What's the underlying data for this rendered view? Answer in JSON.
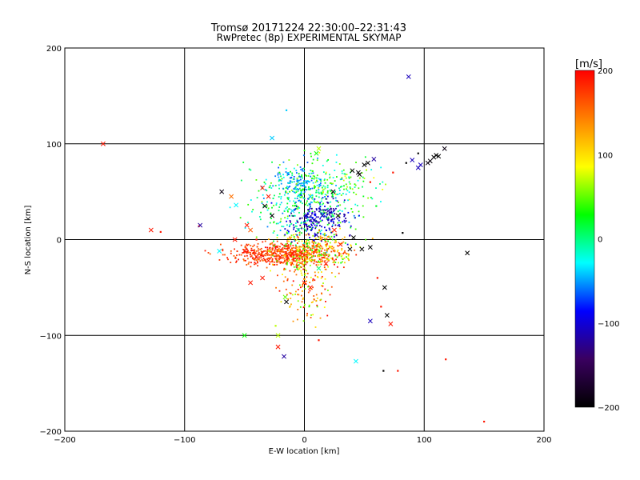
{
  "chart_data": {
    "type": "scatter",
    "title": "Tromsø 20171224 22:30:00–22:31:43",
    "subtitle": "RwPretec (8p) EXPERIMENTAL SKYMAP",
    "xlabel": "E-W location [km]",
    "ylabel": "N-S location [km]",
    "xlim": [
      -200,
      200
    ],
    "ylim": [
      -200,
      200
    ],
    "xticks": [
      "−200",
      "−100",
      "0",
      "100",
      "200"
    ],
    "xtick_values": [
      -200,
      -100,
      0,
      100,
      200
    ],
    "yticks": [
      "−200",
      "−100",
      "0",
      "100",
      "200"
    ],
    "ytick_values": [
      -200,
      -100,
      0,
      100,
      200
    ],
    "grid": true,
    "colorbar": {
      "label": "[m/s]",
      "range": [
        -200,
        200
      ],
      "ticks": [
        "−200",
        "−100",
        "0",
        "100",
        "200"
      ],
      "tick_values": [
        -200,
        -100,
        0,
        100,
        200
      ],
      "colors": [
        "#000000",
        "#3a0060",
        "#0000ff",
        "#00ffff",
        "#00ff00",
        "#ffff00",
        "#ff8000",
        "#ff0000"
      ]
    },
    "points_x": [
      {
        "x": 87,
        "y": 170,
        "v": -110
      },
      {
        "x": -168,
        "y": 100,
        "v": 190
      },
      {
        "x": -27,
        "y": 106,
        "v": -40
      },
      {
        "x": 110,
        "y": 88,
        "v": -200
      },
      {
        "x": 108,
        "y": 86,
        "v": -200
      },
      {
        "x": 112,
        "y": 87,
        "v": -200
      },
      {
        "x": 105,
        "y": 82,
        "v": -195
      },
      {
        "x": 103,
        "y": 80,
        "v": -190
      },
      {
        "x": 117,
        "y": 95,
        "v": -190
      },
      {
        "x": 90,
        "y": 83,
        "v": -110
      },
      {
        "x": 97,
        "y": 78,
        "v": -110
      },
      {
        "x": 95,
        "y": 75,
        "v": -110
      },
      {
        "x": 58,
        "y": 84,
        "v": -120
      },
      {
        "x": 50,
        "y": 78,
        "v": -200
      },
      {
        "x": 53,
        "y": 80,
        "v": -200
      },
      {
        "x": 45,
        "y": 70,
        "v": -200
      },
      {
        "x": 46,
        "y": 68,
        "v": -200
      },
      {
        "x": 40,
        "y": 72,
        "v": -200
      },
      {
        "x": 12,
        "y": 95,
        "v": 70
      },
      {
        "x": 10,
        "y": 90,
        "v": 30
      },
      {
        "x": -69,
        "y": 50,
        "v": -190
      },
      {
        "x": -61,
        "y": 45,
        "v": 150
      },
      {
        "x": -35,
        "y": 54,
        "v": 190
      },
      {
        "x": -30,
        "y": 45,
        "v": 190
      },
      {
        "x": -57,
        "y": 36,
        "v": -30
      },
      {
        "x": -33,
        "y": 35,
        "v": -200
      },
      {
        "x": -27,
        "y": 25,
        "v": -200
      },
      {
        "x": -128,
        "y": 10,
        "v": 190
      },
      {
        "x": -87,
        "y": 15,
        "v": -120
      },
      {
        "x": -48,
        "y": 15,
        "v": 190
      },
      {
        "x": -45,
        "y": 10,
        "v": 160
      },
      {
        "x": -58,
        "y": 0,
        "v": 190
      },
      {
        "x": -71,
        "y": -12,
        "v": -30
      },
      {
        "x": -50,
        "y": -12,
        "v": 190
      },
      {
        "x": -40,
        "y": -18,
        "v": 190
      },
      {
        "x": -30,
        "y": -22,
        "v": 190
      },
      {
        "x": -20,
        "y": -18,
        "v": 190
      },
      {
        "x": -10,
        "y": -15,
        "v": 190
      },
      {
        "x": -45,
        "y": -45,
        "v": 190
      },
      {
        "x": -35,
        "y": -40,
        "v": 190
      },
      {
        "x": 0,
        "y": -45,
        "v": 190
      },
      {
        "x": 5,
        "y": -50,
        "v": 190
      },
      {
        "x": 38,
        "y": -10,
        "v": -200
      },
      {
        "x": 48,
        "y": -10,
        "v": -200
      },
      {
        "x": 55,
        "y": -8,
        "v": -200
      },
      {
        "x": 41,
        "y": 2,
        "v": -200
      },
      {
        "x": 67,
        "y": -50,
        "v": -200
      },
      {
        "x": 69,
        "y": -79,
        "v": -200
      },
      {
        "x": 55,
        "y": -85,
        "v": -110
      },
      {
        "x": 72,
        "y": -88,
        "v": 190
      },
      {
        "x": 136,
        "y": -14,
        "v": -200
      },
      {
        "x": -50,
        "y": -100,
        "v": 30
      },
      {
        "x": -22,
        "y": -100,
        "v": 70
      },
      {
        "x": -22,
        "y": -112,
        "v": 190
      },
      {
        "x": -17,
        "y": -122,
        "v": -120
      },
      {
        "x": 43,
        "y": -127,
        "v": -30
      },
      {
        "x": -15,
        "y": -65,
        "v": -200
      },
      {
        "x": -16,
        "y": -60,
        "v": 50
      },
      {
        "x": 24,
        "y": 50,
        "v": -200
      },
      {
        "x": 2,
        "y": 25,
        "v": -110
      },
      {
        "x": 8,
        "y": 20,
        "v": -110
      },
      {
        "x": 15,
        "y": 25,
        "v": -110
      },
      {
        "x": 20,
        "y": 30,
        "v": -120
      },
      {
        "x": 28,
        "y": 25,
        "v": -200
      },
      {
        "x": -10,
        "y": 30,
        "v": -40
      },
      {
        "x": 5,
        "y": 45,
        "v": -40
      },
      {
        "x": -5,
        "y": 10,
        "v": 0
      },
      {
        "x": 10,
        "y": 5,
        "v": -110
      },
      {
        "x": 25,
        "y": 10,
        "v": 190
      },
      {
        "x": 30,
        "y": -5,
        "v": 190
      },
      {
        "x": 18,
        "y": -25,
        "v": 190
      },
      {
        "x": 12,
        "y": -30,
        "v": 0
      }
    ],
    "points_dot": [
      {
        "x": -15,
        "y": 135,
        "v": -40
      },
      {
        "x": -120,
        "y": 8,
        "v": 190
      },
      {
        "x": 150,
        "y": -190,
        "v": 190
      },
      {
        "x": 118,
        "y": -125,
        "v": 190
      },
      {
        "x": 66,
        "y": -137,
        "v": -200
      },
      {
        "x": 78,
        "y": -137,
        "v": 190
      },
      {
        "x": 82,
        "y": 7,
        "v": -200
      },
      {
        "x": 74,
        "y": 70,
        "v": 190
      },
      {
        "x": 61,
        "y": -40,
        "v": 190
      },
      {
        "x": 64,
        "y": -70,
        "v": 190
      },
      {
        "x": 12,
        "y": -105,
        "v": 190
      },
      {
        "x": -24,
        "y": -90,
        "v": 70
      },
      {
        "x": -88,
        "y": 14,
        "v": 190
      },
      {
        "x": -40,
        "y": 0,
        "v": 190
      },
      {
        "x": 55,
        "y": 60,
        "v": 190
      },
      {
        "x": 60,
        "y": 35,
        "v": 20
      },
      {
        "x": 85,
        "y": 80,
        "v": -200
      },
      {
        "x": 95,
        "y": 90,
        "v": -200
      }
    ]
  }
}
